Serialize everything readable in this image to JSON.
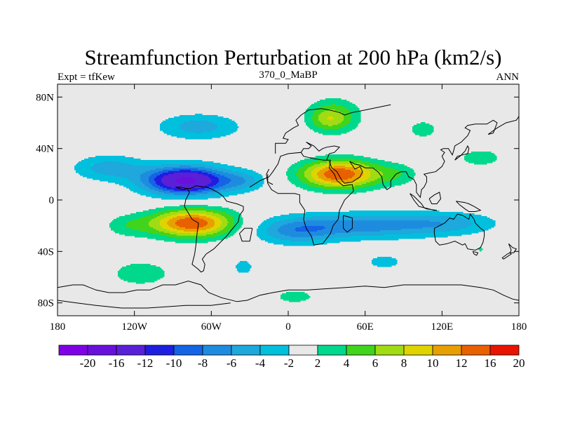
{
  "chart_data": {
    "type": "heatmap",
    "title": "Streamfunction Perturbation at 200 hPa (km2/s)",
    "left_string": "Expt = tfKew",
    "center_string": "370_0_MaBP",
    "right_string": "ANN",
    "x_ticks": [
      {
        "value": -180,
        "label": "180"
      },
      {
        "value": -120,
        "label": "120W"
      },
      {
        "value": -60,
        "label": "60W"
      },
      {
        "value": 0,
        "label": "0"
      },
      {
        "value": 60,
        "label": "60E"
      },
      {
        "value": 120,
        "label": "120E"
      },
      {
        "value": 180,
        "label": "180"
      }
    ],
    "y_ticks": [
      {
        "value": 80,
        "label": "80N"
      },
      {
        "value": 40,
        "label": "40N"
      },
      {
        "value": 0,
        "label": "0"
      },
      {
        "value": -40,
        "label": "40S"
      },
      {
        "value": -80,
        "label": "80S"
      }
    ],
    "xlim": [
      -180,
      180
    ],
    "ylim": [
      -90,
      90
    ],
    "contour_levels": [
      -20,
      -16,
      -12,
      -10,
      -8,
      -6,
      -4,
      -2,
      2,
      4,
      6,
      8,
      10,
      12,
      16,
      20
    ],
    "legend_labels": [
      "-20",
      "-16",
      "-12",
      "-10",
      "-8",
      "-6",
      "-4",
      "-2",
      "2",
      "4",
      "6",
      "8",
      "10",
      "12",
      "16",
      "20"
    ],
    "colors": [
      "#8000e6",
      "#6a10dd",
      "#5a20d8",
      "#1e1ee0",
      "#1464e6",
      "#1e8cde",
      "#1ea8dc",
      "#00c0de",
      "#e8e8e8",
      "#00d88c",
      "#40d41c",
      "#a0dc14",
      "#e0d400",
      "#e8a000",
      "#e86000",
      "#e81400"
    ],
    "field_features": [
      {
        "lon": -80,
        "lat": 15,
        "value": -17,
        "dlon": 32,
        "dlat": 11
      },
      {
        "lon": -140,
        "lat": 25,
        "value": -5,
        "dlon": 28,
        "dlat": 10
      },
      {
        "lon": -70,
        "lat": 57,
        "value": -5,
        "dlon": 32,
        "dlat": 10
      },
      {
        "lon": -35,
        "lat": 15,
        "value": -4,
        "dlon": 18,
        "dlat": 8
      },
      {
        "lon": -75,
        "lat": -18,
        "value": 14,
        "dlon": 32,
        "dlat": 11
      },
      {
        "lon": -125,
        "lat": -20,
        "value": 3,
        "dlon": 20,
        "dlat": 9
      },
      {
        "lon": 40,
        "lat": 20,
        "value": 14,
        "dlon": 30,
        "dlat": 11
      },
      {
        "lon": 85,
        "lat": 20,
        "value": 3,
        "dlon": 18,
        "dlat": 9
      },
      {
        "lon": 35,
        "lat": 65,
        "value": 6.5,
        "dlon": 20,
        "dlat": 13
      },
      {
        "lon": 30,
        "lat": 62,
        "value": 2,
        "dlon": 12,
        "dlat": 7
      },
      {
        "lon": 150,
        "lat": 33,
        "value": 3,
        "dlon": 20,
        "dlat": 8
      },
      {
        "lon": 105,
        "lat": 55,
        "value": 3,
        "dlon": 13,
        "dlat": 8
      },
      {
        "lon": -115,
        "lat": -57,
        "value": 4,
        "dlon": 22,
        "dlat": 9
      },
      {
        "lon": 5,
        "lat": -75,
        "value": 3,
        "dlon": 18,
        "dlat": 6
      },
      {
        "lon": -35,
        "lat": -52,
        "value": -3,
        "dlon": 9,
        "dlat": 7
      },
      {
        "lon": 55,
        "lat": -20,
        "value": -7,
        "dlon": 60,
        "dlat": 10
      },
      {
        "lon": 125,
        "lat": -18,
        "value": -4,
        "dlon": 40,
        "dlat": 9
      },
      {
        "lon": 5,
        "lat": -25,
        "value": -5,
        "dlon": 30,
        "dlat": 10
      },
      {
        "lon": 75,
        "lat": -48,
        "value": -3,
        "dlon": 16,
        "dlat": 6
      },
      {
        "lon": 150,
        "lat": -38,
        "value": 2.5,
        "dlon": 3,
        "dlat": 3
      }
    ],
    "coastlines": [
      [
        [
          -180,
          -68
        ],
        [
          -168,
          -66
        ],
        [
          -160,
          -66
        ],
        [
          -150,
          -70
        ],
        [
          -140,
          -72
        ],
        [
          -128,
          -72
        ],
        [
          -118,
          -70
        ],
        [
          -108,
          -70
        ],
        [
          -98,
          -66
        ],
        [
          -88,
          -66
        ],
        [
          -78,
          -63
        ],
        [
          -68,
          -66
        ],
        [
          -62,
          -72
        ],
        [
          -52,
          -76
        ],
        [
          -40,
          -79
        ],
        [
          -32,
          -78
        ],
        [
          -22,
          -74
        ],
        [
          -12,
          -72
        ],
        [
          0,
          -70
        ],
        [
          15,
          -70
        ],
        [
          30,
          -69
        ],
        [
          45,
          -68
        ],
        [
          60,
          -67
        ],
        [
          75,
          -68
        ],
        [
          90,
          -66
        ],
        [
          105,
          -66
        ],
        [
          120,
          -66
        ],
        [
          135,
          -66
        ],
        [
          150,
          -68
        ],
        [
          160,
          -70
        ],
        [
          168,
          -74
        ],
        [
          175,
          -77
        ],
        [
          180,
          -78
        ]
      ],
      [
        [
          -180,
          -78
        ],
        [
          -165,
          -80
        ],
        [
          -150,
          -82
        ],
        [
          -130,
          -84
        ],
        [
          -110,
          -84
        ],
        [
          -80,
          -82
        ],
        [
          -60,
          -82
        ],
        [
          -45,
          -80
        ]
      ],
      [
        [
          -88,
          10
        ],
        [
          -82,
          8
        ],
        [
          -79,
          9
        ],
        [
          -77,
          6
        ],
        [
          -80,
          0
        ],
        [
          -81,
          -5
        ],
        [
          -78,
          -10
        ],
        [
          -75,
          -15
        ],
        [
          -70,
          -18
        ],
        [
          -71,
          -25
        ],
        [
          -72,
          -35
        ],
        [
          -73,
          -42
        ],
        [
          -75,
          -50
        ],
        [
          -70,
          -54
        ],
        [
          -68,
          -56
        ],
        [
          -66,
          -55
        ],
        [
          -65,
          -50
        ],
        [
          -67,
          -46
        ],
        [
          -64,
          -42
        ],
        [
          -58,
          -38
        ],
        [
          -53,
          -33
        ],
        [
          -48,
          -28
        ],
        [
          -44,
          -23
        ],
        [
          -39,
          -17
        ],
        [
          -38,
          -12
        ],
        [
          -35,
          -8
        ],
        [
          -35,
          -5
        ],
        [
          -40,
          -3
        ],
        [
          -48,
          -1
        ],
        [
          -51,
          3
        ],
        [
          -55,
          6
        ],
        [
          -61,
          9
        ],
        [
          -64,
          10
        ],
        [
          -72,
          11
        ],
        [
          -76,
          9
        ],
        [
          -80,
          9
        ],
        [
          -84,
          10
        ],
        [
          -88,
          10
        ]
      ],
      [
        [
          -28,
          -22
        ],
        [
          -30,
          -32
        ],
        [
          -36,
          -32
        ],
        [
          -38,
          -26
        ],
        [
          -34,
          -22
        ],
        [
          -28,
          -22
        ]
      ],
      [
        [
          -30,
          10
        ],
        [
          -22,
          15
        ],
        [
          -15,
          18
        ],
        [
          -12,
          22
        ],
        [
          -8,
          28
        ],
        [
          -6,
          34
        ],
        [
          0,
          36
        ],
        [
          10,
          37
        ],
        [
          12,
          34
        ],
        [
          20,
          32
        ],
        [
          28,
          31
        ],
        [
          33,
          31
        ],
        [
          32,
          25
        ],
        [
          36,
          20
        ],
        [
          38,
          15
        ],
        [
          43,
          11
        ],
        [
          50,
          12
        ],
        [
          51,
          7
        ],
        [
          44,
          0
        ],
        [
          40,
          -8
        ],
        [
          39,
          -15
        ],
        [
          35,
          -20
        ],
        [
          33,
          -26
        ],
        [
          27,
          -34
        ],
        [
          20,
          -35
        ],
        [
          18,
          -28
        ],
        [
          14,
          -22
        ],
        [
          12,
          -15
        ],
        [
          13,
          -8
        ],
        [
          9,
          -2
        ],
        [
          9,
          4
        ],
        [
          5,
          5
        ],
        [
          0,
          5
        ],
        [
          -8,
          5
        ],
        [
          -13,
          8
        ],
        [
          -16,
          13
        ],
        [
          -17,
          20
        ],
        [
          -15,
          24
        ]
      ],
      [
        [
          43,
          -12
        ],
        [
          50,
          -14
        ],
        [
          50,
          -22
        ],
        [
          46,
          -25
        ],
        [
          43,
          -22
        ],
        [
          43,
          -12
        ]
      ],
      [
        [
          -10,
          36
        ],
        [
          -10,
          44
        ],
        [
          -2,
          44
        ],
        [
          0,
          47
        ],
        [
          -4,
          48
        ],
        [
          -2,
          52
        ],
        [
          4,
          56
        ],
        [
          8,
          58
        ],
        [
          6,
          62
        ],
        [
          10,
          66
        ],
        [
          16,
          70
        ],
        [
          26,
          71
        ],
        [
          32,
          70
        ],
        [
          40,
          68
        ],
        [
          44,
          66
        ],
        [
          50,
          68
        ],
        [
          60,
          70
        ],
        [
          70,
          72
        ],
        [
          80,
          74
        ]
      ],
      [
        [
          10,
          37
        ],
        [
          12,
          40
        ],
        [
          16,
          40
        ],
        [
          18,
          42
        ],
        [
          14,
          45
        ],
        [
          20,
          42
        ],
        [
          24,
          38
        ],
        [
          27,
          40
        ],
        [
          30,
          41
        ],
        [
          36,
          42
        ],
        [
          40,
          41
        ],
        [
          36,
          37
        ],
        [
          32,
          36
        ],
        [
          30,
          31
        ]
      ],
      [
        [
          -12,
          12
        ],
        [
          -16,
          14
        ],
        [
          -16,
          20
        ]
      ],
      [
        [
          32,
          30
        ],
        [
          34,
          25
        ],
        [
          38,
          22
        ],
        [
          42,
          15
        ],
        [
          44,
          13
        ],
        [
          50,
          14
        ],
        [
          56,
          18
        ],
        [
          58,
          22
        ],
        [
          56,
          26
        ],
        [
          52,
          24
        ],
        [
          50,
          27
        ],
        [
          48,
          30
        ]
      ],
      [
        [
          48,
          30
        ],
        [
          52,
          28
        ],
        [
          56,
          27
        ],
        [
          60,
          25
        ],
        [
          66,
          25
        ],
        [
          70,
          22
        ],
        [
          73,
          18
        ],
        [
          74,
          12
        ],
        [
          77,
          8
        ],
        [
          80,
          10
        ],
        [
          80,
          15
        ],
        [
          84,
          20
        ],
        [
          88,
          22
        ],
        [
          92,
          22
        ],
        [
          94,
          18
        ],
        [
          98,
          16
        ],
        [
          100,
          12
        ],
        [
          100,
          6
        ],
        [
          103,
          2
        ],
        [
          104,
          8
        ],
        [
          106,
          10
        ],
        [
          108,
          14
        ],
        [
          108,
          18
        ],
        [
          106,
          20
        ],
        [
          110,
          21
        ],
        [
          115,
          22
        ],
        [
          120,
          26
        ],
        [
          122,
          30
        ],
        [
          120,
          34
        ],
        [
          122,
          37
        ],
        [
          119,
          39
        ],
        [
          121,
          40
        ],
        [
          125,
          40
        ],
        [
          128,
          35
        ],
        [
          129,
          38
        ],
        [
          130,
          42
        ],
        [
          135,
          45
        ],
        [
          140,
          50
        ],
        [
          142,
          54
        ],
        [
          138,
          56
        ],
        [
          140,
          58
        ],
        [
          146,
          59
        ],
        [
          155,
          59
        ],
        [
          160,
          62
        ],
        [
          163,
          60
        ],
        [
          160,
          52
        ],
        [
          156,
          51
        ],
        [
          163,
          56
        ],
        [
          170,
          60
        ],
        [
          178,
          62
        ],
        [
          180,
          65
        ]
      ],
      [
        [
          95,
          5
        ],
        [
          98,
          3
        ],
        [
          104,
          -3
        ],
        [
          106,
          -6
        ],
        [
          102,
          -5
        ],
        [
          98,
          0
        ],
        [
          95,
          5
        ]
      ],
      [
        [
          106,
          -6
        ],
        [
          114,
          -8
        ],
        [
          116,
          -8
        ],
        [
          108,
          -7
        ],
        [
          106,
          -6
        ]
      ],
      [
        [
          110,
          1
        ],
        [
          114,
          4
        ],
        [
          118,
          6
        ],
        [
          119,
          1
        ],
        [
          116,
          -3
        ],
        [
          112,
          -3
        ],
        [
          110,
          1
        ]
      ],
      [
        [
          130,
          31
        ],
        [
          132,
          34
        ],
        [
          136,
          35
        ],
        [
          140,
          36
        ],
        [
          141,
          40
        ],
        [
          140,
          42
        ],
        [
          138,
          38
        ],
        [
          134,
          34
        ],
        [
          130,
          31
        ]
      ],
      [
        [
          114,
          -22
        ],
        [
          114,
          -26
        ],
        [
          115,
          -32
        ],
        [
          118,
          -35
        ],
        [
          124,
          -34
        ],
        [
          130,
          -32
        ],
        [
          136,
          -35
        ],
        [
          138,
          -34
        ],
        [
          140,
          -38
        ],
        [
          146,
          -39
        ],
        [
          150,
          -37
        ],
        [
          152,
          -33
        ],
        [
          153,
          -28
        ],
        [
          153,
          -24
        ],
        [
          150,
          -22
        ],
        [
          146,
          -18
        ],
        [
          145,
          -15
        ],
        [
          142,
          -11
        ],
        [
          141,
          -15
        ],
        [
          136,
          -12
        ],
        [
          132,
          -11
        ],
        [
          129,
          -15
        ],
        [
          126,
          -14
        ],
        [
          122,
          -18
        ],
        [
          114,
          -22
        ]
      ],
      [
        [
          172,
          -34
        ],
        [
          175,
          -37
        ],
        [
          178,
          -38
        ],
        [
          176,
          -41
        ],
        [
          173,
          -41
        ],
        [
          174,
          -39
        ],
        [
          172,
          -34
        ]
      ],
      [
        [
          173,
          -41
        ],
        [
          174,
          -42
        ],
        [
          171,
          -44
        ],
        [
          168,
          -46
        ],
        [
          167,
          -45
        ],
        [
          171,
          -42
        ],
        [
          173,
          -41
        ]
      ],
      [
        [
          144,
          -40
        ],
        [
          148,
          -41
        ],
        [
          147,
          -43
        ],
        [
          145,
          -42
        ],
        [
          144,
          -40
        ]
      ],
      [
        [
          131,
          -1
        ],
        [
          138,
          -2
        ],
        [
          141,
          -3
        ],
        [
          145,
          -5
        ],
        [
          150,
          -8
        ],
        [
          146,
          -9
        ],
        [
          141,
          -9
        ],
        [
          138,
          -7
        ],
        [
          134,
          -4
        ],
        [
          131,
          -1
        ]
      ]
    ]
  }
}
